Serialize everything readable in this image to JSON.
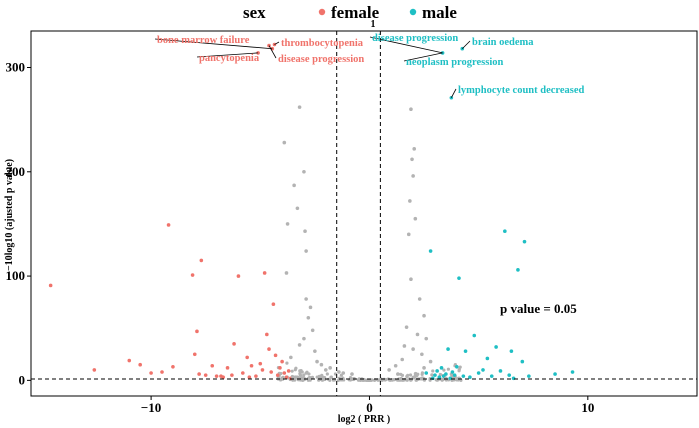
{
  "chart_data": {
    "type": "scatter",
    "title": "",
    "legend": {
      "title": "sex",
      "placement": "top",
      "entries": [
        {
          "label": "female",
          "color": "#F0736B"
        },
        {
          "label": "male",
          "color": "#1FBFC4"
        }
      ]
    },
    "xlabel": "log2 ( PRR )",
    "ylabel": "−10log10 (ajusted p value)",
    "xlim": [
      -15.5,
      15
    ],
    "ylim": [
      -15,
      335
    ],
    "x_ticks": [
      -10,
      0,
      10
    ],
    "x_tick_labels": [
      "−10",
      "0",
      "10"
    ],
    "y_ticks": [
      0,
      100,
      200,
      300
    ],
    "y_tick_labels": [
      "0",
      "100",
      "200",
      "300"
    ],
    "thresholds": {
      "vertical_x": [
        -1.5,
        0.5
      ],
      "horizontal_y": 1.3,
      "top_label": "1",
      "pvalue_note": "p value = 0.05"
    },
    "colors": {
      "female": "#F0736B",
      "male": "#1FBFC4",
      "ns": "#B3B3B3"
    },
    "series": [
      {
        "name": "female",
        "color": "#F0736B",
        "points": [
          [
            -14.6,
            91
          ],
          [
            -12.6,
            10
          ],
          [
            -11.0,
            19
          ],
          [
            -10.5,
            15
          ],
          [
            -10.0,
            7
          ],
          [
            -9.5,
            8
          ],
          [
            -9.2,
            149
          ],
          [
            -9.0,
            13
          ],
          [
            -8.1,
            101
          ],
          [
            -8.0,
            25
          ],
          [
            -7.9,
            47
          ],
          [
            -7.8,
            6
          ],
          [
            -7.7,
            115
          ],
          [
            -7.5,
            5
          ],
          [
            -7.2,
            14
          ],
          [
            -6.8,
            4
          ],
          [
            -6.5,
            12
          ],
          [
            -6.3,
            5
          ],
          [
            -6.2,
            35
          ],
          [
            -6.0,
            100
          ],
          [
            -5.8,
            7
          ],
          [
            -5.6,
            22
          ],
          [
            -5.4,
            14
          ],
          [
            -5.2,
            4
          ],
          [
            -5.0,
            16
          ],
          [
            -4.9,
            10
          ],
          [
            -4.8,
            103
          ],
          [
            -4.7,
            44
          ],
          [
            -4.6,
            30
          ],
          [
            -4.5,
            8
          ],
          [
            -4.4,
            73
          ],
          [
            -4.3,
            24
          ],
          [
            -4.2,
            5
          ],
          [
            -4.1,
            12
          ],
          [
            -4.0,
            18
          ],
          [
            -3.9,
            7
          ],
          [
            -3.8,
            3
          ],
          [
            -3.7,
            9
          ],
          [
            -3.6,
            2
          ],
          [
            -5.5,
            3
          ],
          [
            -6.7,
            3
          ],
          [
            -7.0,
            4
          ],
          [
            -4.45,
            318
          ],
          [
            -4.35,
            322
          ],
          [
            -4.6,
            321
          ],
          [
            -5.1,
            314
          ]
        ]
      },
      {
        "name": "male",
        "color": "#1FBFC4",
        "points": [
          [
            2.8,
            124
          ],
          [
            2.6,
            7
          ],
          [
            2.9,
            2
          ],
          [
            3.0,
            5
          ],
          [
            3.1,
            9
          ],
          [
            3.2,
            3
          ],
          [
            3.3,
            12
          ],
          [
            3.4,
            4
          ],
          [
            3.5,
            6
          ],
          [
            3.6,
            30
          ],
          [
            3.7,
            2
          ],
          [
            3.8,
            8
          ],
          [
            3.9,
            5
          ],
          [
            4.0,
            13
          ],
          [
            4.1,
            98
          ],
          [
            4.3,
            4
          ],
          [
            4.4,
            28
          ],
          [
            4.6,
            3
          ],
          [
            4.8,
            43
          ],
          [
            5.0,
            7
          ],
          [
            5.2,
            10
          ],
          [
            5.4,
            21
          ],
          [
            5.6,
            4
          ],
          [
            5.8,
            32
          ],
          [
            6.0,
            9
          ],
          [
            6.2,
            143
          ],
          [
            6.4,
            5
          ],
          [
            6.5,
            28
          ],
          [
            6.6,
            2
          ],
          [
            6.8,
            106
          ],
          [
            7.0,
            18
          ],
          [
            7.1,
            133
          ],
          [
            7.3,
            4
          ],
          [
            8.5,
            6
          ],
          [
            9.3,
            8
          ],
          [
            3.35,
            314
          ],
          [
            4.25,
            318
          ],
          [
            3.75,
            271
          ]
        ]
      },
      {
        "name": "not significant",
        "color": "#B3B3B3",
        "points": [
          [
            -3.2,
            262
          ],
          [
            -3.9,
            228
          ],
          [
            -3.0,
            200
          ],
          [
            -3.45,
            187
          ],
          [
            -3.3,
            165
          ],
          [
            -2.95,
            143
          ],
          [
            -3.75,
            150
          ],
          [
            -2.9,
            124
          ],
          [
            -3.8,
            103
          ],
          [
            -2.9,
            78
          ],
          [
            -2.7,
            70
          ],
          [
            -2.8,
            60
          ],
          [
            -2.6,
            48
          ],
          [
            -3.0,
            40
          ],
          [
            -3.2,
            34
          ],
          [
            -2.5,
            28
          ],
          [
            -3.6,
            22
          ],
          [
            -2.4,
            18
          ],
          [
            -2.2,
            15
          ],
          [
            -1.8,
            12
          ],
          [
            -2.0,
            10
          ],
          [
            -1.4,
            8
          ],
          [
            -1.2,
            7
          ],
          [
            -0.8,
            6
          ],
          [
            1.9,
            260
          ],
          [
            2.05,
            222
          ],
          [
            1.95,
            212
          ],
          [
            2.0,
            196
          ],
          [
            1.85,
            172
          ],
          [
            2.1,
            155
          ],
          [
            1.8,
            140
          ],
          [
            1.9,
            97
          ],
          [
            2.3,
            78
          ],
          [
            2.5,
            62
          ],
          [
            1.7,
            51
          ],
          [
            2.2,
            44
          ],
          [
            2.6,
            40
          ],
          [
            1.6,
            33
          ],
          [
            2.0,
            30
          ],
          [
            2.4,
            25
          ],
          [
            1.5,
            20
          ],
          [
            1.2,
            14
          ],
          [
            0.9,
            10
          ],
          [
            2.8,
            18
          ],
          [
            2.5,
            12
          ],
          [
            1.3,
            6
          ],
          [
            3.5,
            2
          ],
          [
            -3.5,
            3
          ]
        ]
      }
    ],
    "annotations": [
      {
        "label": "bone marrow failure",
        "sex": "female",
        "x": -4.45,
        "y": 318
      },
      {
        "label": "thrombocytopenia",
        "sex": "female",
        "x": -4.35,
        "y": 322
      },
      {
        "label": "pancytopenia",
        "sex": "female",
        "x": -5.1,
        "y": 314
      },
      {
        "label": "disease progression",
        "sex": "female",
        "x": -4.6,
        "y": 321
      },
      {
        "label": "disease progression",
        "sex": "male",
        "x": 3.35,
        "y": 314
      },
      {
        "label": "brain oedema",
        "sex": "male",
        "x": 4.25,
        "y": 318
      },
      {
        "label": "neoplasm progression",
        "sex": "male",
        "x": 3.35,
        "y": 314
      },
      {
        "label": "lymphocyte count decreased",
        "sex": "male",
        "x": 3.75,
        "y": 271
      }
    ]
  }
}
